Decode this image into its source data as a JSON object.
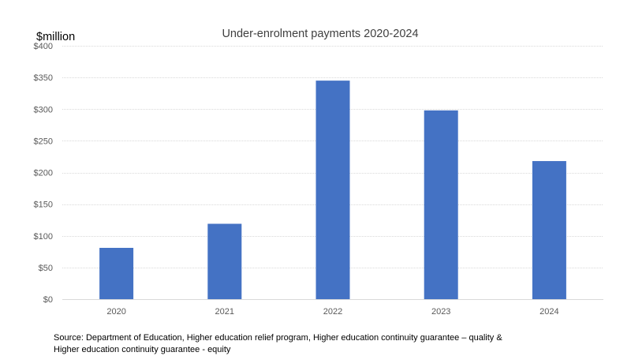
{
  "chart_data": {
    "type": "bar",
    "title": "Under-enrolment payments 2020-2024",
    "ylabel": "$million",
    "xlabel": "",
    "categories": [
      "2020",
      "2021",
      "2022",
      "2023",
      "2024"
    ],
    "values": [
      81,
      119,
      345,
      298,
      218
    ],
    "ylim": [
      0,
      400
    ],
    "y_ticks": [
      0,
      50,
      100,
      150,
      200,
      250,
      300,
      350,
      400
    ],
    "y_tick_labels": [
      "$0",
      "$50",
      "$100",
      "$150",
      "$200",
      "$250",
      "$300",
      "$350",
      "$400"
    ],
    "bar_color": "#4472c4",
    "grid": true,
    "legend": "none"
  },
  "source": {
    "line1": "Source: Department of Education, Higher education relief program, Higher education continuity guarantee – quality &",
    "line2": "Higher education continuity guarantee - equity"
  }
}
